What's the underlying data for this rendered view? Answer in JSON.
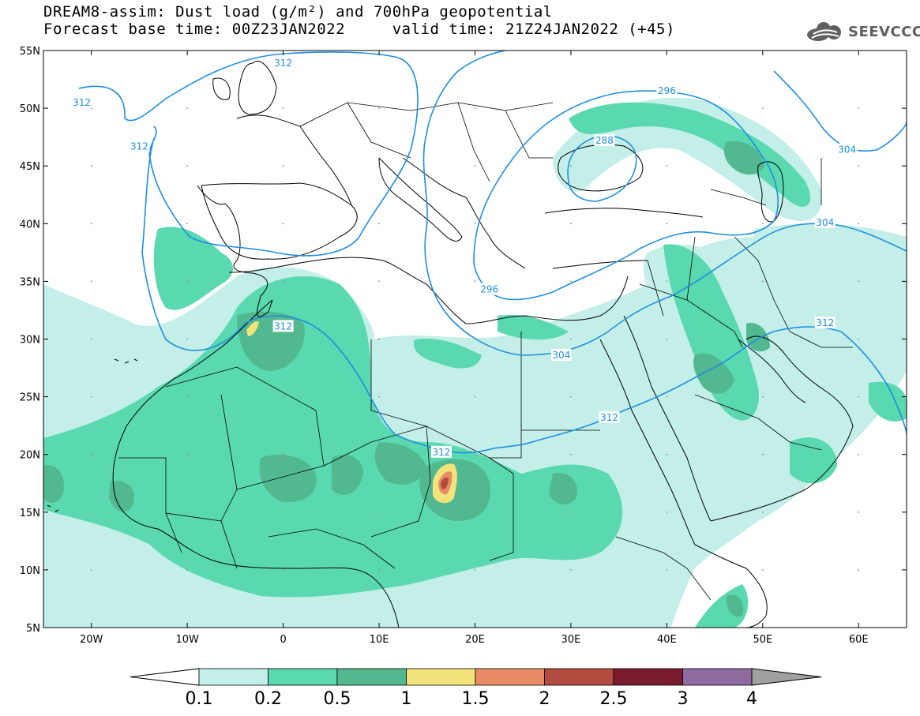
{
  "title": {
    "line1": "DREAM8-assim: Dust load (g/m²) and 700hPa geopotential",
    "line2": "Forecast base time: 00Z23JAN2022     valid time: 21Z24JAN2022 (+45)"
  },
  "logo": {
    "text": "SEEVCCC",
    "icon": "cloud-icon"
  },
  "map": {
    "lon_range": [
      -25,
      65
    ],
    "lat_range": [
      5,
      55
    ],
    "lat_labels": [
      "55N",
      "50N",
      "45N",
      "40N",
      "35N",
      "30N",
      "25N",
      "20N",
      "15N",
      "10N",
      "5N"
    ],
    "lon_labels": [
      "20W",
      "10W",
      "0",
      "10E",
      "20E",
      "30E",
      "40E",
      "50E",
      "60E"
    ],
    "contour_labels": [
      {
        "text": "312",
        "lon": -21,
        "lat": 50.5
      },
      {
        "text": "312",
        "lon": -15,
        "lat": 46.7
      },
      {
        "text": "312",
        "lon": 0,
        "lat": 53.9
      },
      {
        "text": "312",
        "lon": 0,
        "lat": 31.1
      },
      {
        "text": "312",
        "lon": 16.5,
        "lat": 20.2
      },
      {
        "text": "312",
        "lon": 34,
        "lat": 23.2
      },
      {
        "text": "312",
        "lon": 56.5,
        "lat": 31.4
      },
      {
        "text": "296",
        "lon": 40,
        "lat": 51.5
      },
      {
        "text": "288",
        "lon": 33.5,
        "lat": 47.2
      },
      {
        "text": "304",
        "lon": 58.8,
        "lat": 46.4
      },
      {
        "text": "304",
        "lon": 56.5,
        "lat": 40.1
      },
      {
        "text": "304",
        "lon": 29,
        "lat": 28.6
      },
      {
        "text": "296",
        "lon": 21.5,
        "lat": 34.3
      }
    ],
    "colors": {
      "contour": "#1f8fe0",
      "coast": "#000000",
      "level_0_1": "#c3efe8",
      "level_0_2": "#5ad8b0",
      "level_0_5": "#52b890",
      "level_1": "#f2e47a",
      "level_1_5": "#e88b66",
      "level_2": "#b04b3e"
    }
  },
  "colorbar": {
    "labels": [
      "0.1",
      "0.2",
      "0.5",
      "1",
      "1.5",
      "2",
      "2.5",
      "3",
      "4"
    ],
    "colors": [
      "#c3efe8",
      "#5ad8b0",
      "#52b890",
      "#f2e47a",
      "#e88b66",
      "#b04b3e",
      "#7a1a2e",
      "#8e6aa0"
    ],
    "under_color": "#ffffff",
    "over_color": "#a0a0a0"
  }
}
